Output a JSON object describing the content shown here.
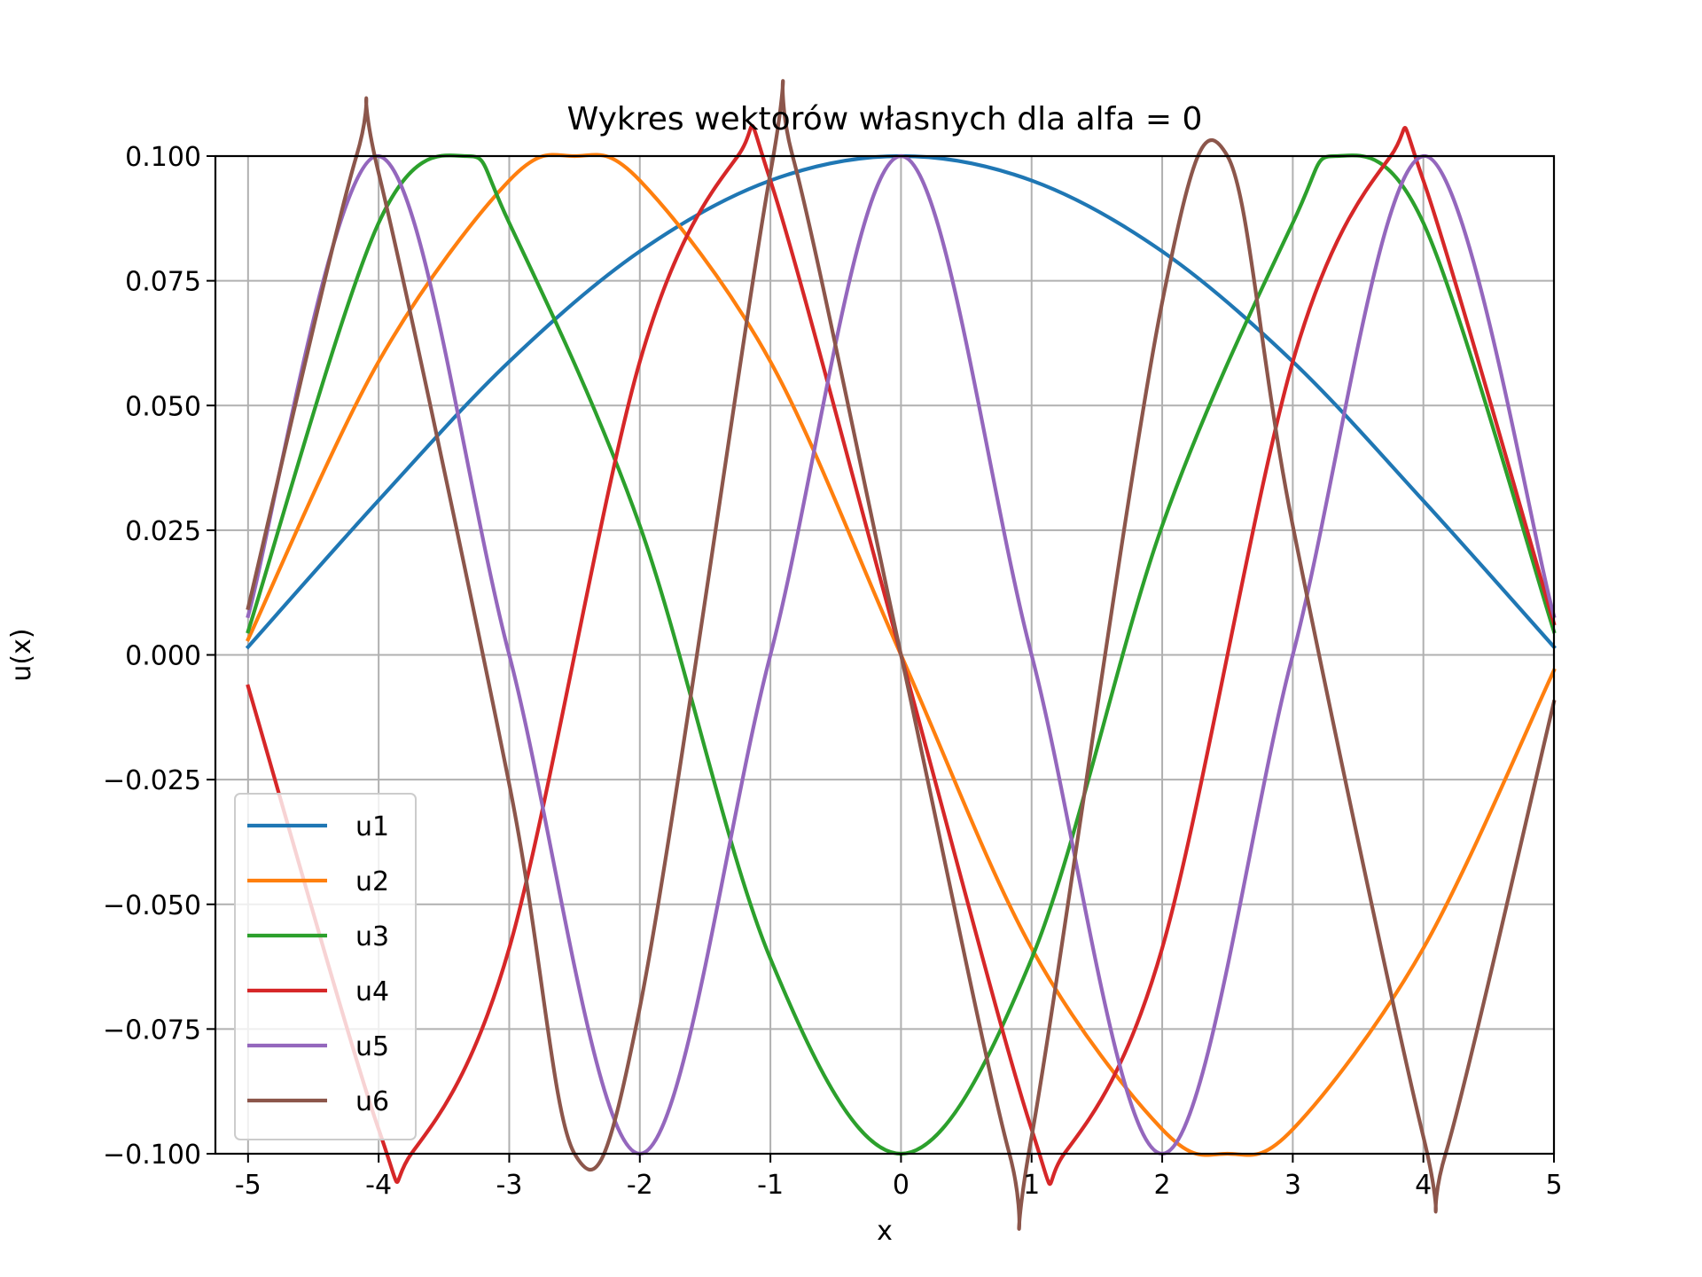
{
  "chart_data": {
    "type": "line",
    "title": "Wykres wektorów własnych dla alfa = 0",
    "xlabel": "x",
    "ylabel": "u(x)",
    "xlim": [
      -5.25,
      5.0
    ],
    "ylim": [
      -0.1,
      0.1
    ],
    "grid": true,
    "legend_position": "lower-left",
    "x_ticks": [
      -5,
      -4,
      -3,
      -2,
      -1,
      0,
      1,
      2,
      3,
      4,
      5
    ],
    "x_tick_labels": [
      "-5",
      "-4",
      "-3",
      "-2",
      "-1",
      "0",
      "1",
      "2",
      "3",
      "4",
      "5"
    ],
    "y_ticks": [
      -0.1,
      -0.075,
      -0.05,
      -0.025,
      0.0,
      0.025,
      0.05,
      0.075,
      0.1
    ],
    "y_tick_labels": [
      "−0.100",
      "−0.075",
      "−0.050",
      "−0.025",
      "0.000",
      "0.025",
      "0.050",
      "0.075",
      "0.100"
    ],
    "series": [
      {
        "name": "u1",
        "color": "#1f77b4",
        "x": [
          -5.0,
          -4.0,
          -3.0,
          -2.0,
          -1.0,
          0.0,
          1.0,
          2.0,
          3.0,
          4.0,
          5.0
        ],
        "y": [
          0.0016,
          0.031,
          0.0588,
          0.0809,
          0.0951,
          0.1,
          0.0951,
          0.0809,
          0.0588,
          0.0309,
          0.0016
        ]
      },
      {
        "name": "u2",
        "color": "#ff7f0e",
        "x": [
          -5.0,
          -4.0,
          -3.0,
          -2.5,
          -2.0,
          -1.0,
          0.0,
          1.0,
          2.0,
          2.5,
          3.0,
          4.0,
          5.0
        ],
        "y": [
          0.0031,
          0.0588,
          0.0951,
          0.1,
          0.0951,
          0.0588,
          0.0,
          -0.0588,
          -0.0951,
          -0.1,
          -0.0951,
          -0.0588,
          -0.0031
        ]
      },
      {
        "name": "u3",
        "color": "#2ca02c",
        "x": [
          -5.0,
          -4.0,
          -3.33,
          -3.0,
          -2.0,
          -1.0,
          0.0,
          1.0,
          2.0,
          3.0,
          3.33,
          4.0,
          5.0
        ],
        "y": [
          0.0047,
          0.0866,
          0.1,
          0.0866,
          0.0259,
          -0.0609,
          -0.1,
          -0.0609,
          0.0259,
          0.0866,
          0.1,
          0.0866,
          0.0047
        ]
      },
      {
        "name": "u4",
        "color": "#d62728",
        "x": [
          -5.0,
          -4.0,
          -3.75,
          -3.0,
          -2.0,
          -1.25,
          -1.0,
          0.0,
          1.0,
          1.25,
          2.0,
          3.0,
          3.75,
          4.0,
          5.0
        ],
        "y": [
          -0.0063,
          -0.0951,
          -0.1,
          -0.0588,
          0.0588,
          0.1,
          0.0951,
          0.0,
          -0.0951,
          -0.1,
          -0.0588,
          0.0588,
          0.1,
          0.0951,
          0.0063
        ]
      },
      {
        "name": "u5",
        "color": "#9467bd",
        "x": [
          -5.0,
          -4.0,
          -3.0,
          -2.0,
          -1.0,
          0.0,
          1.0,
          2.0,
          3.0,
          4.0,
          5.0
        ],
        "y": [
          0.0078,
          0.1,
          -0.0,
          -0.1,
          0.0,
          0.1,
          0.0,
          -0.1,
          0.0,
          0.1,
          0.0078
        ]
      },
      {
        "name": "u6",
        "color": "#8c564b",
        "x": [
          -5.0,
          -4.17,
          -4.0,
          -3.0,
          -2.5,
          -2.0,
          -1.0,
          -0.83,
          0.0,
          0.83,
          1.0,
          2.0,
          2.5,
          3.0,
          4.0,
          4.17,
          5.0
        ],
        "y": [
          0.0094,
          0.1,
          0.0966,
          -0.0259,
          -0.1,
          -0.0707,
          0.0966,
          0.1,
          0.0,
          -0.1,
          -0.0966,
          0.0707,
          0.1,
          0.0259,
          -0.0966,
          -0.1,
          -0.0094
        ]
      }
    ]
  }
}
